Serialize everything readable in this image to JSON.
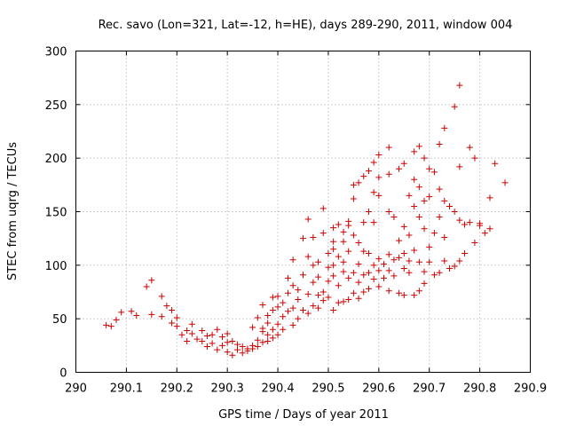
{
  "chart_data": {
    "type": "scatter",
    "title": "Rec. savo (Lon=321, Lat=-12, h=HE), days 289-290, 2011, window 004",
    "xlabel": "GPS time / Days of year 2011",
    "ylabel": "STEC from uqrg / TECUs",
    "xlim": [
      290,
      290.9
    ],
    "ylim": [
      0,
      300
    ],
    "xticks": [
      "290",
      "290.1",
      "290.2",
      "290.3",
      "290.4",
      "290.5",
      "290.6",
      "290.7",
      "290.8",
      "290.9"
    ],
    "yticks": [
      "0",
      "50",
      "100",
      "150",
      "200",
      "250",
      "300"
    ],
    "grid": true,
    "marker": "plus",
    "color": "#cc0000",
    "series": [
      {
        "name": "STEC",
        "points": [
          [
            290.06,
            44
          ],
          [
            290.07,
            43
          ],
          [
            290.08,
            49
          ],
          [
            290.09,
            56
          ],
          [
            290.11,
            57
          ],
          [
            290.12,
            53
          ],
          [
            290.14,
            80
          ],
          [
            290.15,
            86
          ],
          [
            290.15,
            54
          ],
          [
            290.17,
            52
          ],
          [
            290.17,
            71
          ],
          [
            290.18,
            62
          ],
          [
            290.19,
            46
          ],
          [
            290.19,
            58
          ],
          [
            290.2,
            51
          ],
          [
            290.2,
            43
          ],
          [
            290.21,
            35
          ],
          [
            290.22,
            39
          ],
          [
            290.22,
            29
          ],
          [
            290.23,
            45
          ],
          [
            290.23,
            36
          ],
          [
            290.24,
            31
          ],
          [
            290.25,
            39
          ],
          [
            290.25,
            29
          ],
          [
            290.26,
            34
          ],
          [
            290.26,
            24
          ],
          [
            290.27,
            35
          ],
          [
            290.27,
            27
          ],
          [
            290.28,
            40
          ],
          [
            290.28,
            21
          ],
          [
            290.29,
            33
          ],
          [
            290.29,
            25
          ],
          [
            290.3,
            36
          ],
          [
            290.3,
            28
          ],
          [
            290.3,
            19
          ],
          [
            290.31,
            29
          ],
          [
            290.31,
            16
          ],
          [
            290.32,
            26
          ],
          [
            290.32,
            21
          ],
          [
            290.33,
            18
          ],
          [
            290.33,
            24
          ],
          [
            290.34,
            22
          ],
          [
            290.34,
            20
          ],
          [
            290.35,
            25
          ],
          [
            290.35,
            22
          ],
          [
            290.35,
            42
          ],
          [
            290.36,
            30
          ],
          [
            290.36,
            24
          ],
          [
            290.36,
            51
          ],
          [
            290.37,
            28
          ],
          [
            290.37,
            41
          ],
          [
            290.37,
            38
          ],
          [
            290.37,
            63
          ],
          [
            290.38,
            35
          ],
          [
            290.38,
            29
          ],
          [
            290.38,
            46
          ],
          [
            290.38,
            53
          ],
          [
            290.39,
            70
          ],
          [
            290.39,
            58
          ],
          [
            290.39,
            40
          ],
          [
            290.39,
            32
          ],
          [
            290.4,
            45
          ],
          [
            290.4,
            61
          ],
          [
            290.4,
            71
          ],
          [
            290.4,
            35
          ],
          [
            290.41,
            40
          ],
          [
            290.41,
            52
          ],
          [
            290.41,
            65
          ],
          [
            290.42,
            74
          ],
          [
            290.42,
            88
          ],
          [
            290.42,
            57
          ],
          [
            290.43,
            44
          ],
          [
            290.43,
            60
          ],
          [
            290.43,
            81
          ],
          [
            290.43,
            105
          ],
          [
            290.44,
            77
          ],
          [
            290.44,
            68
          ],
          [
            290.44,
            50
          ],
          [
            290.45,
            125
          ],
          [
            290.45,
            91
          ],
          [
            290.45,
            58
          ],
          [
            290.46,
            108
          ],
          [
            290.46,
            143
          ],
          [
            290.46,
            73
          ],
          [
            290.46,
            55
          ],
          [
            290.47,
            62
          ],
          [
            290.47,
            84
          ],
          [
            290.47,
            100
          ],
          [
            290.47,
            126
          ],
          [
            290.48,
            103
          ],
          [
            290.48,
            89
          ],
          [
            290.48,
            72
          ],
          [
            290.48,
            60
          ],
          [
            290.49,
            153
          ],
          [
            290.49,
            130
          ],
          [
            290.49,
            75
          ],
          [
            290.49,
            67
          ],
          [
            290.5,
            98
          ],
          [
            290.5,
            111
          ],
          [
            290.5,
            85
          ],
          [
            290.5,
            70
          ],
          [
            290.51,
            135
          ],
          [
            290.51,
            100
          ],
          [
            290.51,
            122
          ],
          [
            290.51,
            115
          ],
          [
            290.51,
            90
          ],
          [
            290.51,
            58
          ],
          [
            290.52,
            138
          ],
          [
            290.52,
            108
          ],
          [
            290.52,
            81
          ],
          [
            290.52,
            65
          ],
          [
            290.53,
            131
          ],
          [
            290.53,
            122
          ],
          [
            290.53,
            103
          ],
          [
            290.53,
            94
          ],
          [
            290.53,
            66
          ],
          [
            290.54,
            141
          ],
          [
            290.54,
            137
          ],
          [
            290.54,
            113
          ],
          [
            290.54,
            88
          ],
          [
            290.54,
            68
          ],
          [
            290.55,
            175
          ],
          [
            290.55,
            162
          ],
          [
            290.55,
            128
          ],
          [
            290.55,
            93
          ],
          [
            290.55,
            74
          ],
          [
            290.56,
            177
          ],
          [
            290.56,
            121
          ],
          [
            290.56,
            101
          ],
          [
            290.56,
            84
          ],
          [
            290.56,
            69
          ],
          [
            290.57,
            183
          ],
          [
            290.57,
            140
          ],
          [
            290.57,
            113
          ],
          [
            290.57,
            91
          ],
          [
            290.57,
            75
          ],
          [
            290.58,
            188
          ],
          [
            290.58,
            150
          ],
          [
            290.58,
            111
          ],
          [
            290.58,
            93
          ],
          [
            290.58,
            78
          ],
          [
            290.59,
            196
          ],
          [
            290.59,
            168
          ],
          [
            290.59,
            140
          ],
          [
            290.59,
            100
          ],
          [
            290.59,
            87
          ],
          [
            290.6,
            203
          ],
          [
            290.6,
            182
          ],
          [
            290.6,
            165
          ],
          [
            290.6,
            106
          ],
          [
            290.6,
            95
          ],
          [
            290.6,
            80
          ],
          [
            290.61,
            101
          ],
          [
            290.61,
            88
          ],
          [
            290.62,
            210
          ],
          [
            290.62,
            185
          ],
          [
            290.62,
            150
          ],
          [
            290.62,
            110
          ],
          [
            290.62,
            95
          ],
          [
            290.62,
            76
          ],
          [
            290.63,
            145
          ],
          [
            290.63,
            105
          ],
          [
            290.63,
            90
          ],
          [
            290.64,
            190
          ],
          [
            290.64,
            123
          ],
          [
            290.64,
            107
          ],
          [
            290.64,
            74
          ],
          [
            290.65,
            195
          ],
          [
            290.65,
            136
          ],
          [
            290.65,
            111
          ],
          [
            290.65,
            97
          ],
          [
            290.65,
            72
          ],
          [
            290.66,
            165
          ],
          [
            290.66,
            128
          ],
          [
            290.66,
            104
          ],
          [
            290.66,
            93
          ],
          [
            290.67,
            206
          ],
          [
            290.67,
            180
          ],
          [
            290.67,
            155
          ],
          [
            290.67,
            114
          ],
          [
            290.67,
            72
          ],
          [
            290.68,
            211
          ],
          [
            290.68,
            173
          ],
          [
            290.68,
            145
          ],
          [
            290.68,
            103
          ],
          [
            290.68,
            76
          ],
          [
            290.69,
            200
          ],
          [
            290.69,
            160
          ],
          [
            290.69,
            134
          ],
          [
            290.69,
            94
          ],
          [
            290.69,
            83
          ],
          [
            290.7,
            190
          ],
          [
            290.7,
            164
          ],
          [
            290.7,
            117
          ],
          [
            290.7,
            103
          ],
          [
            290.71,
            187
          ],
          [
            290.71,
            130
          ],
          [
            290.71,
            91
          ],
          [
            290.72,
            213
          ],
          [
            290.72,
            171
          ],
          [
            290.72,
            145
          ],
          [
            290.72,
            93
          ],
          [
            290.73,
            228
          ],
          [
            290.73,
            160
          ],
          [
            290.73,
            126
          ],
          [
            290.73,
            104
          ],
          [
            290.74,
            155
          ],
          [
            290.74,
            97
          ],
          [
            290.75,
            248
          ],
          [
            290.75,
            150
          ],
          [
            290.75,
            99
          ],
          [
            290.76,
            268
          ],
          [
            290.76,
            192
          ],
          [
            290.76,
            142
          ],
          [
            290.76,
            104
          ],
          [
            290.77,
            138
          ],
          [
            290.77,
            111
          ],
          [
            290.78,
            210
          ],
          [
            290.78,
            140
          ],
          [
            290.79,
            200
          ],
          [
            290.79,
            121
          ],
          [
            290.8,
            139
          ],
          [
            290.8,
            137
          ],
          [
            290.81,
            130
          ],
          [
            290.82,
            163
          ],
          [
            290.82,
            134
          ],
          [
            290.83,
            195
          ],
          [
            290.85,
            177
          ]
        ]
      }
    ]
  }
}
